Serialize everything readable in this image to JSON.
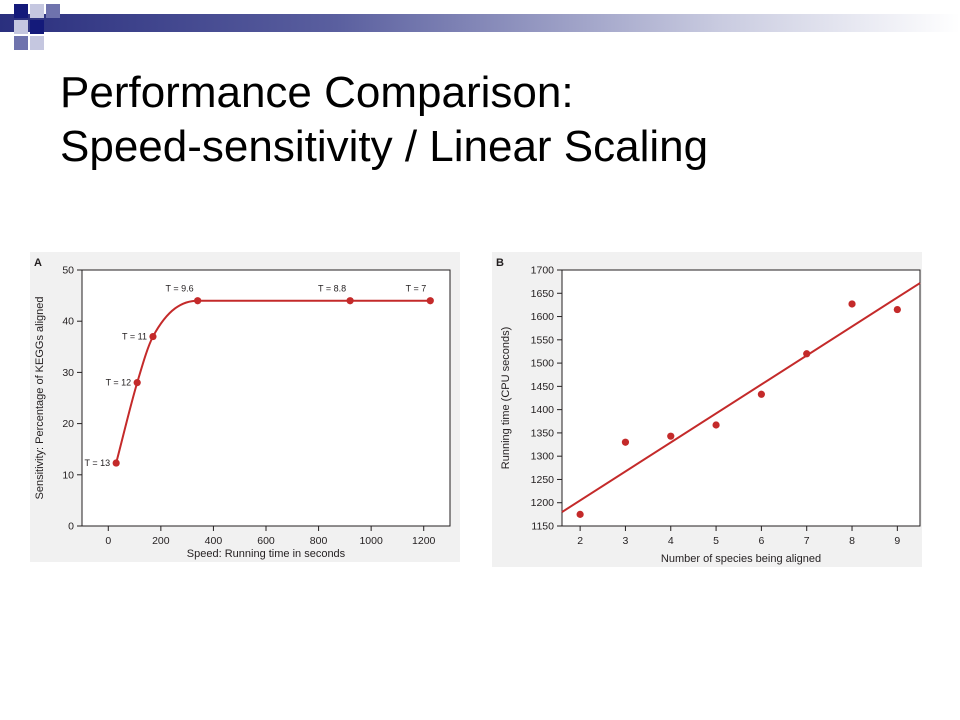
{
  "slide": {
    "title_line1": "Performance Comparison:",
    "title_line2": "Speed-sensitivity / Linear Scaling"
  },
  "colors": {
    "accent_dark": "#141a7a",
    "accent_mid": "#6f73ad",
    "accent_light": "#c5c7e0",
    "plot_background": "#f1f1f1",
    "series_red": "#c42a2a"
  },
  "chart_data": [
    {
      "type": "line",
      "panel": "A",
      "xlabel": "Speed: Running time in seconds",
      "ylabel": "Sensitivity: Percentage of KEGGs aligned",
      "xlim": [
        -100,
        1300
      ],
      "ylim": [
        0,
        50
      ],
      "xticks": [
        0,
        200,
        400,
        600,
        800,
        1000,
        1200
      ],
      "yticks": [
        0,
        10,
        20,
        30,
        40,
        50
      ],
      "grid": false,
      "series": [
        {
          "x": [
            30,
            110,
            170,
            340,
            920,
            1225
          ],
          "y": [
            12.3,
            28,
            37,
            44,
            44,
            44
          ]
        }
      ],
      "annotations": [
        {
          "text": "T = 13",
          "x": 30,
          "y": 12.3
        },
        {
          "text": "T = 12",
          "x": 110,
          "y": 28
        },
        {
          "text": "T = 11",
          "x": 170,
          "y": 37
        },
        {
          "text": "T = 9.6",
          "x": 340,
          "y": 44
        },
        {
          "text": "T = 8.8",
          "x": 920,
          "y": 44
        },
        {
          "text": "T = 7",
          "x": 1225,
          "y": 44
        }
      ]
    },
    {
      "type": "scatter",
      "panel": "B",
      "xlabel": "Number of species being aligned",
      "ylabel": "Running time (CPU seconds)",
      "xlim": [
        1.6,
        9.5
      ],
      "ylim": [
        1150,
        1700
      ],
      "xticks": [
        2,
        3,
        4,
        5,
        6,
        7,
        8,
        9
      ],
      "yticks": [
        1150,
        1200,
        1250,
        1300,
        1350,
        1400,
        1450,
        1500,
        1550,
        1600,
        1650,
        1700
      ],
      "grid": false,
      "series": [
        {
          "x": [
            2,
            3,
            4,
            5,
            6,
            7,
            8,
            9
          ],
          "y": [
            1175,
            1330,
            1343,
            1367,
            1433,
            1520,
            1627,
            1615
          ]
        }
      ],
      "trend_line": {
        "x": [
          1.6,
          9.5
        ],
        "y": [
          1180,
          1672
        ]
      }
    }
  ]
}
